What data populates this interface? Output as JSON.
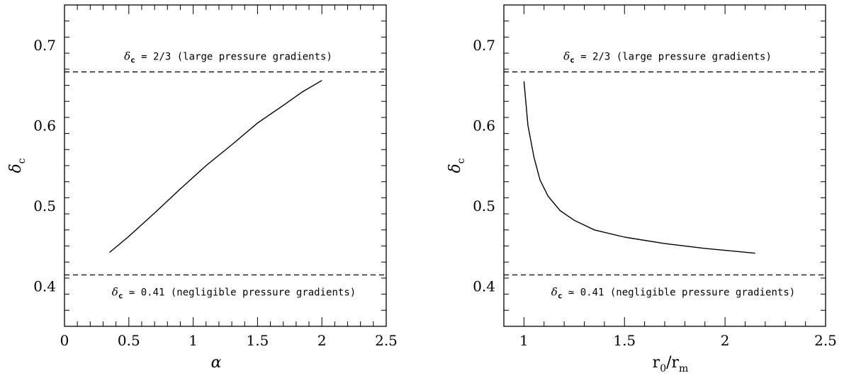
{
  "chart_data": [
    {
      "type": "line",
      "xlabel": "α",
      "ylabel": "δc",
      "xlim": [
        0,
        2.5
      ],
      "ylim": [
        0.35,
        0.75
      ],
      "x_ticks": [
        "0",
        "0.5",
        "1",
        "1.5",
        "2",
        "2.5"
      ],
      "y_ticks": [
        "0.4",
        "0.5",
        "0.6",
        "0.7"
      ],
      "series": [
        {
          "x": [
            0.35,
            0.5,
            0.7,
            0.9,
            1.1,
            1.3,
            1.5,
            1.7,
            1.85,
            2.0
          ],
          "y": [
            0.442,
            0.462,
            0.491,
            0.521,
            0.55,
            0.576,
            0.603,
            0.625,
            0.642,
            0.656
          ]
        }
      ],
      "hlines": [
        0.6667,
        0.414
      ],
      "annotations": {
        "upper": {
          "prefix": "δ",
          "sub": "c",
          "rest": " = 2/3  (large pressure gradients)"
        },
        "lower": {
          "prefix": "δ",
          "sub": "c",
          "rest": " ≃ 0.41  (negligible pressure gradients)"
        }
      }
    },
    {
      "type": "line",
      "xlabel": "r0/rm",
      "ylabel": "δc",
      "xlim": [
        0.9,
        2.5
      ],
      "ylim": [
        0.35,
        0.75
      ],
      "x_ticks": [
        "1",
        "1.5",
        "2",
        "2.5"
      ],
      "y_ticks": [
        "0.4",
        "0.5",
        "0.6",
        "0.7"
      ],
      "series": [
        {
          "x": [
            1.0,
            1.02,
            1.05,
            1.08,
            1.12,
            1.18,
            1.25,
            1.35,
            1.5,
            1.7,
            1.9,
            2.15
          ],
          "y": [
            0.655,
            0.6,
            0.56,
            0.532,
            0.512,
            0.494,
            0.482,
            0.47,
            0.461,
            0.453,
            0.447,
            0.441
          ]
        }
      ],
      "hlines": [
        0.6667,
        0.414
      ],
      "annotations": {
        "upper": {
          "prefix": "δ",
          "sub": "c",
          "rest": " = 2/3  (large pressure gradients)"
        },
        "lower": {
          "prefix": "δ",
          "sub": "c",
          "rest": " ≃ 0.41  (negligible pressure gradients)"
        }
      }
    }
  ]
}
